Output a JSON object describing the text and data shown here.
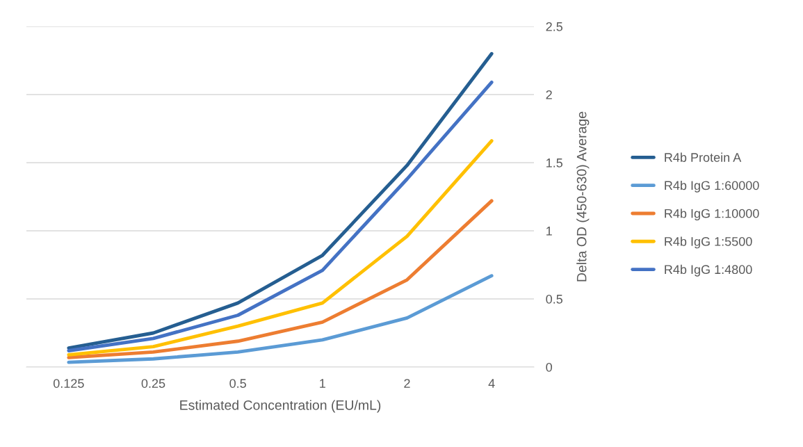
{
  "chart_data": {
    "type": "line",
    "xlabel": "Estimated Concentration (EU/mL)",
    "ylabel": "Delta OD (450-630) Average",
    "categories": [
      "0.125",
      "0.25",
      "0.5",
      "1",
      "2",
      "4"
    ],
    "series": [
      {
        "name": "R4b Protein A",
        "color": "#255e91",
        "values": [
          0.14,
          0.25,
          0.47,
          0.82,
          1.48,
          2.3
        ]
      },
      {
        "name": "R4b IgG 1:60000",
        "color": "#5b9bd5",
        "values": [
          0.035,
          0.06,
          0.11,
          0.2,
          0.36,
          0.67
        ]
      },
      {
        "name": "R4b IgG 1:10000",
        "color": "#ed7d31",
        "values": [
          0.07,
          0.11,
          0.19,
          0.33,
          0.64,
          1.22
        ]
      },
      {
        "name": "R4b IgG 1:5500",
        "color": "#ffc000",
        "values": [
          0.09,
          0.15,
          0.3,
          0.47,
          0.96,
          1.66
        ]
      },
      {
        "name": "R4b IgG 1:4800",
        "color": "#4472c4",
        "values": [
          0.12,
          0.21,
          0.38,
          0.71,
          1.38,
          2.09
        ]
      }
    ],
    "ylim": [
      0,
      2.5
    ],
    "yticks": [
      0,
      0.5,
      1,
      1.5,
      2,
      2.5
    ],
    "grid": "y",
    "legend": "right",
    "marker": "none",
    "line_style": "solid"
  }
}
